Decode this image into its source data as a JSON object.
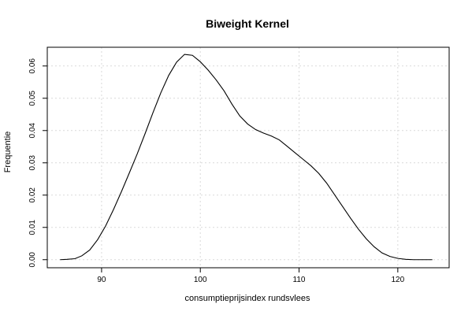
{
  "chart_data": {
    "type": "line",
    "title": "Biweight Kernel",
    "xlabel": "consumptieprijsindex rundsvlees",
    "ylabel": "Frequentie",
    "xlim": [
      84.5,
      125.2
    ],
    "ylim": [
      -0.0025,
      0.0658
    ],
    "xticks": [
      90,
      100,
      110,
      120
    ],
    "yticks": [
      0.0,
      0.01,
      0.02,
      0.03,
      0.04,
      0.05,
      0.06
    ],
    "ytick_labels": [
      "0.00",
      "0.01",
      "0.02",
      "0.03",
      "0.04",
      "0.05",
      "0.06"
    ],
    "grid": true,
    "series": [
      {
        "x": [
          85.8,
          86.5,
          87.3,
          88.0,
          88.8,
          89.6,
          90.4,
          91.2,
          92.0,
          92.8,
          93.6,
          94.4,
          95.2,
          96.0,
          96.8,
          97.6,
          98.4,
          99.2,
          100.0,
          100.8,
          101.6,
          102.4,
          103.2,
          104.0,
          104.8,
          105.6,
          106.4,
          107.2,
          108.0,
          108.8,
          109.6,
          110.4,
          111.2,
          112.0,
          112.8,
          113.6,
          114.4,
          115.2,
          116.0,
          116.8,
          117.6,
          118.4,
          119.2,
          120.0,
          120.8,
          121.6,
          122.4,
          123.5
        ],
        "y": [
          0.0,
          0.0001,
          0.0003,
          0.0012,
          0.003,
          0.0062,
          0.0104,
          0.0155,
          0.021,
          0.0268,
          0.0327,
          0.039,
          0.0455,
          0.0517,
          0.0571,
          0.0612,
          0.0636,
          0.0633,
          0.0613,
          0.0587,
          0.0557,
          0.0523,
          0.0482,
          0.0445,
          0.042,
          0.0403,
          0.0392,
          0.0383,
          0.0371,
          0.0351,
          0.0331,
          0.0311,
          0.0291,
          0.0267,
          0.0237,
          0.0201,
          0.0165,
          0.0129,
          0.0095,
          0.0065,
          0.004,
          0.0021,
          0.001,
          0.0004,
          0.0001,
          0.0,
          0.0,
          0.0
        ]
      }
    ]
  }
}
